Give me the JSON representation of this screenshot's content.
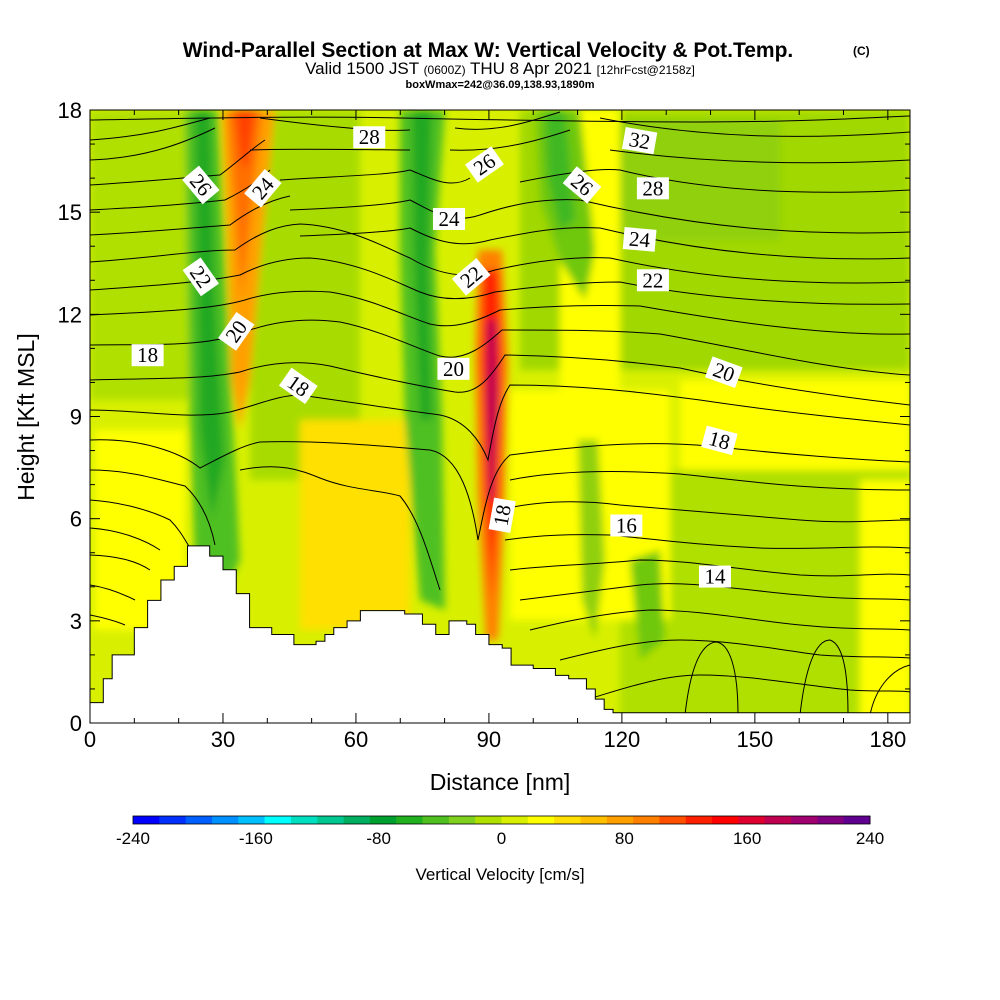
{
  "chart_data": {
    "type": "heatmap",
    "title": "Wind-Parallel Section at Max W: Vertical Velocity & Pot.Temp.",
    "title_mark": "(C)",
    "subtitle_prefix": "Valid 1500 JST",
    "subtitle_z": "(0600Z)",
    "subtitle_date": "THU 8 Apr 2021",
    "subtitle_fcst": "[12hrFcst@2158z]",
    "subtitle2": "boxWmax=242@36.09,138.93,1890m",
    "xlabel": "Distance [nm]",
    "ylabel": "Height [Kft MSL]",
    "xlim": [
      0,
      185
    ],
    "ylim": [
      0,
      18
    ],
    "x_ticks": [
      "0",
      "30",
      "60",
      "90",
      "120",
      "150",
      "180"
    ],
    "y_ticks": [
      "0",
      "3",
      "6",
      "9",
      "12",
      "15",
      "18"
    ],
    "colorbar": {
      "label": "Vertical Velocity [cm/s]",
      "range": [
        -240,
        240
      ],
      "ticks": [
        "-240",
        "-160",
        "-80",
        "0",
        "80",
        "160",
        "240"
      ],
      "colors": [
        "#0000ff",
        "#0030ff",
        "#0060ff",
        "#0090ff",
        "#00c0ff",
        "#00ffff",
        "#00e0c0",
        "#00c890",
        "#00b060",
        "#00a030",
        "#20b020",
        "#50c020",
        "#80d020",
        "#b0e000",
        "#d8f000",
        "#ffff00",
        "#ffe000",
        "#ffc000",
        "#ffa000",
        "#ff8000",
        "#ff5000",
        "#ff2000",
        "#ff0000",
        "#e00030",
        "#c00050",
        "#a00070",
        "#800080",
        "#600090"
      ]
    },
    "vertical_velocity_features": [
      {
        "name": "downdraft",
        "x_range": [
          20,
          32
        ],
        "z_range": [
          3.5,
          18
        ],
        "w_min": -100
      },
      {
        "name": "updraft",
        "x_range": [
          30,
          44
        ],
        "z_range": [
          6,
          18
        ],
        "w_max": 150
      },
      {
        "name": "downdraft",
        "x_range": [
          70,
          80
        ],
        "z_range": [
          3.5,
          18
        ],
        "w_min": -90
      },
      {
        "name": "updraft",
        "x_range": [
          87,
          95
        ],
        "z_range": [
          3,
          13
        ],
        "w_max": 242
      },
      {
        "name": "downdraft",
        "x_range": [
          98,
          112
        ],
        "z_range": [
          9,
          18
        ],
        "w_min": -70
      }
    ],
    "potential_temperature_labels": [
      "28",
      "32",
      "26",
      "26",
      "26",
      "28",
      "24",
      "24",
      "24",
      "22",
      "22",
      "22",
      "20",
      "20",
      "20",
      "18",
      "18",
      "18",
      "18",
      "16",
      "14"
    ],
    "terrain_profile": {
      "x": [
        0,
        3,
        5,
        10,
        13,
        16,
        19,
        22,
        26,
        27,
        30,
        33,
        36,
        41,
        46,
        51,
        53,
        55,
        58,
        61,
        64,
        67,
        71,
        75,
        78,
        81,
        85,
        87,
        90,
        93,
        95,
        100,
        105,
        108,
        112,
        114,
        116,
        118,
        185
      ],
      "z": [
        0.6,
        1.3,
        2.0,
        2.8,
        3.6,
        4.2,
        4.6,
        5.2,
        5.2,
        4.9,
        4.5,
        3.8,
        2.8,
        2.6,
        2.3,
        2.4,
        2.6,
        2.8,
        3.0,
        3.3,
        3.3,
        3.3,
        3.2,
        2.9,
        2.6,
        3.0,
        2.9,
        2.6,
        2.3,
        2.2,
        1.7,
        1.6,
        1.4,
        1.3,
        1.0,
        0.7,
        0.4,
        0.3,
        0.3
      ]
    }
  }
}
